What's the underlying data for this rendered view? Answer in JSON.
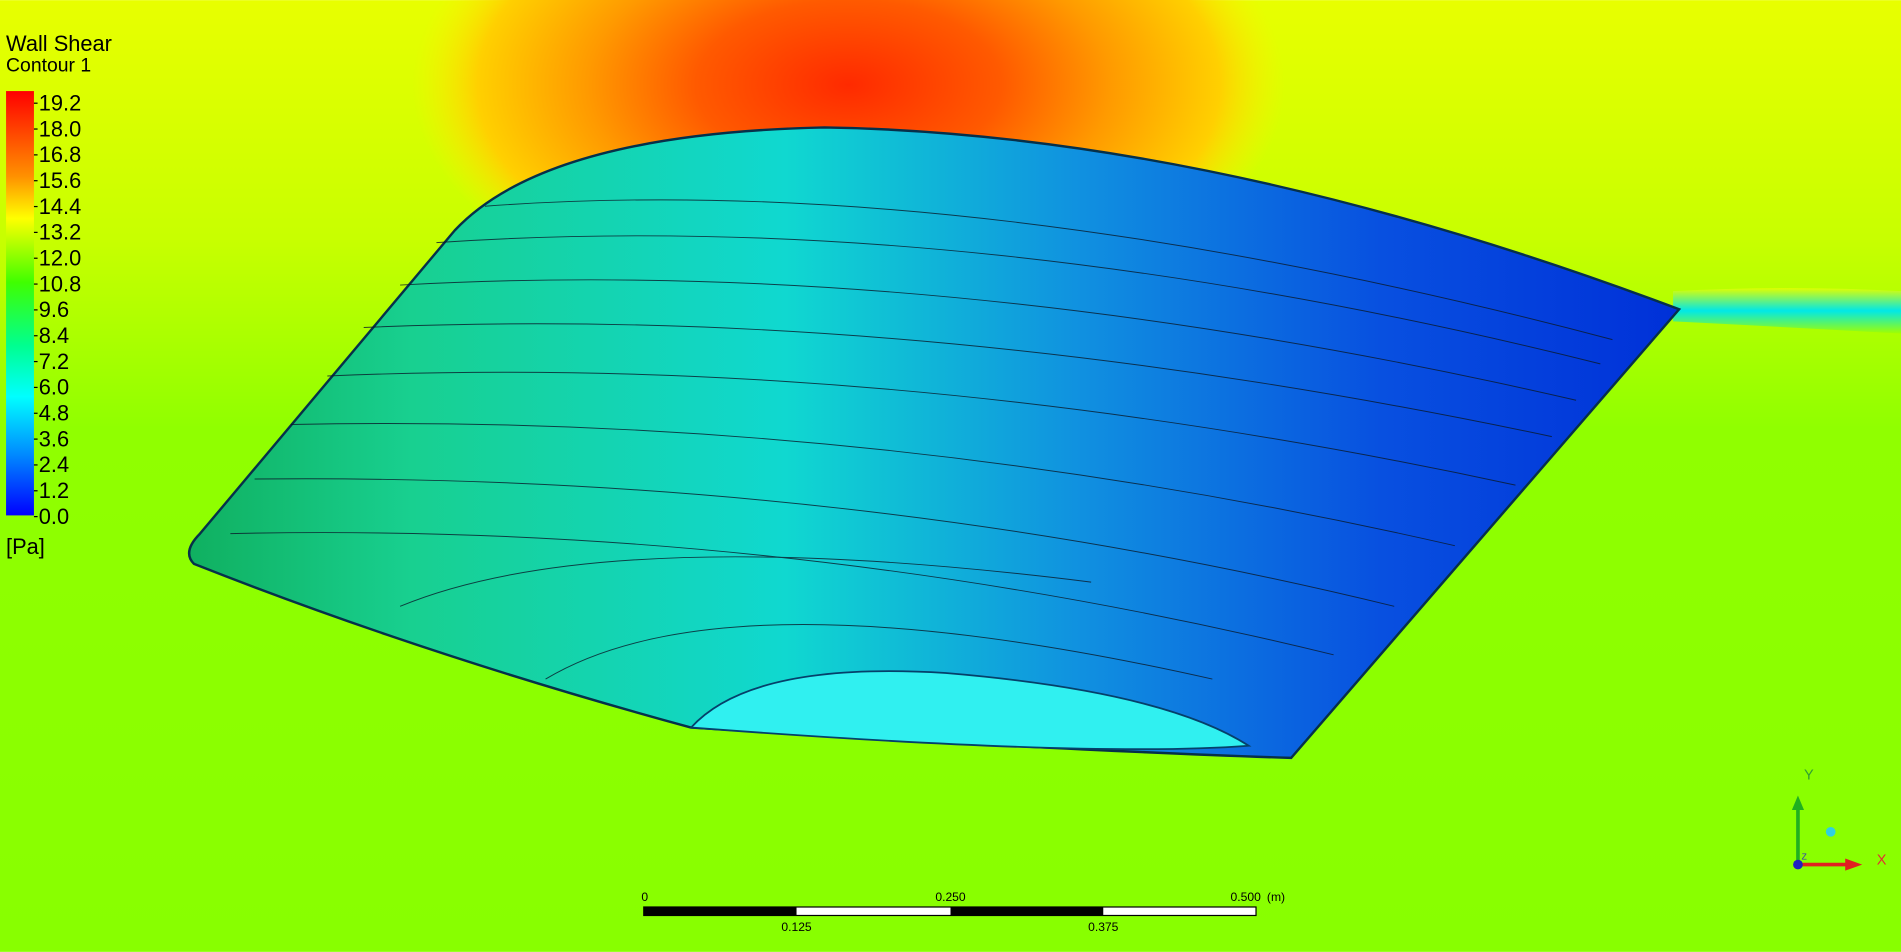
{
  "legend": {
    "title": "Wall Shear",
    "subtitle": "Contour 1",
    "ticks": [
      "19.2",
      "18.0",
      "16.8",
      "15.6",
      "14.4",
      "13.2",
      "12.0",
      "10.8",
      "9.6",
      "8.4",
      "7.2",
      "6.0",
      "4.8",
      "3.6",
      "2.4",
      "1.2",
      "0.0"
    ],
    "unit": "[Pa]"
  },
  "scale_bar": {
    "top_labels": [
      "0",
      "0.250",
      "0.500"
    ],
    "unit": "(m)",
    "bottom_labels": [
      "0.125",
      "0.375"
    ]
  },
  "axes": {
    "x": "X",
    "y": "Y",
    "z": "Z"
  }
}
